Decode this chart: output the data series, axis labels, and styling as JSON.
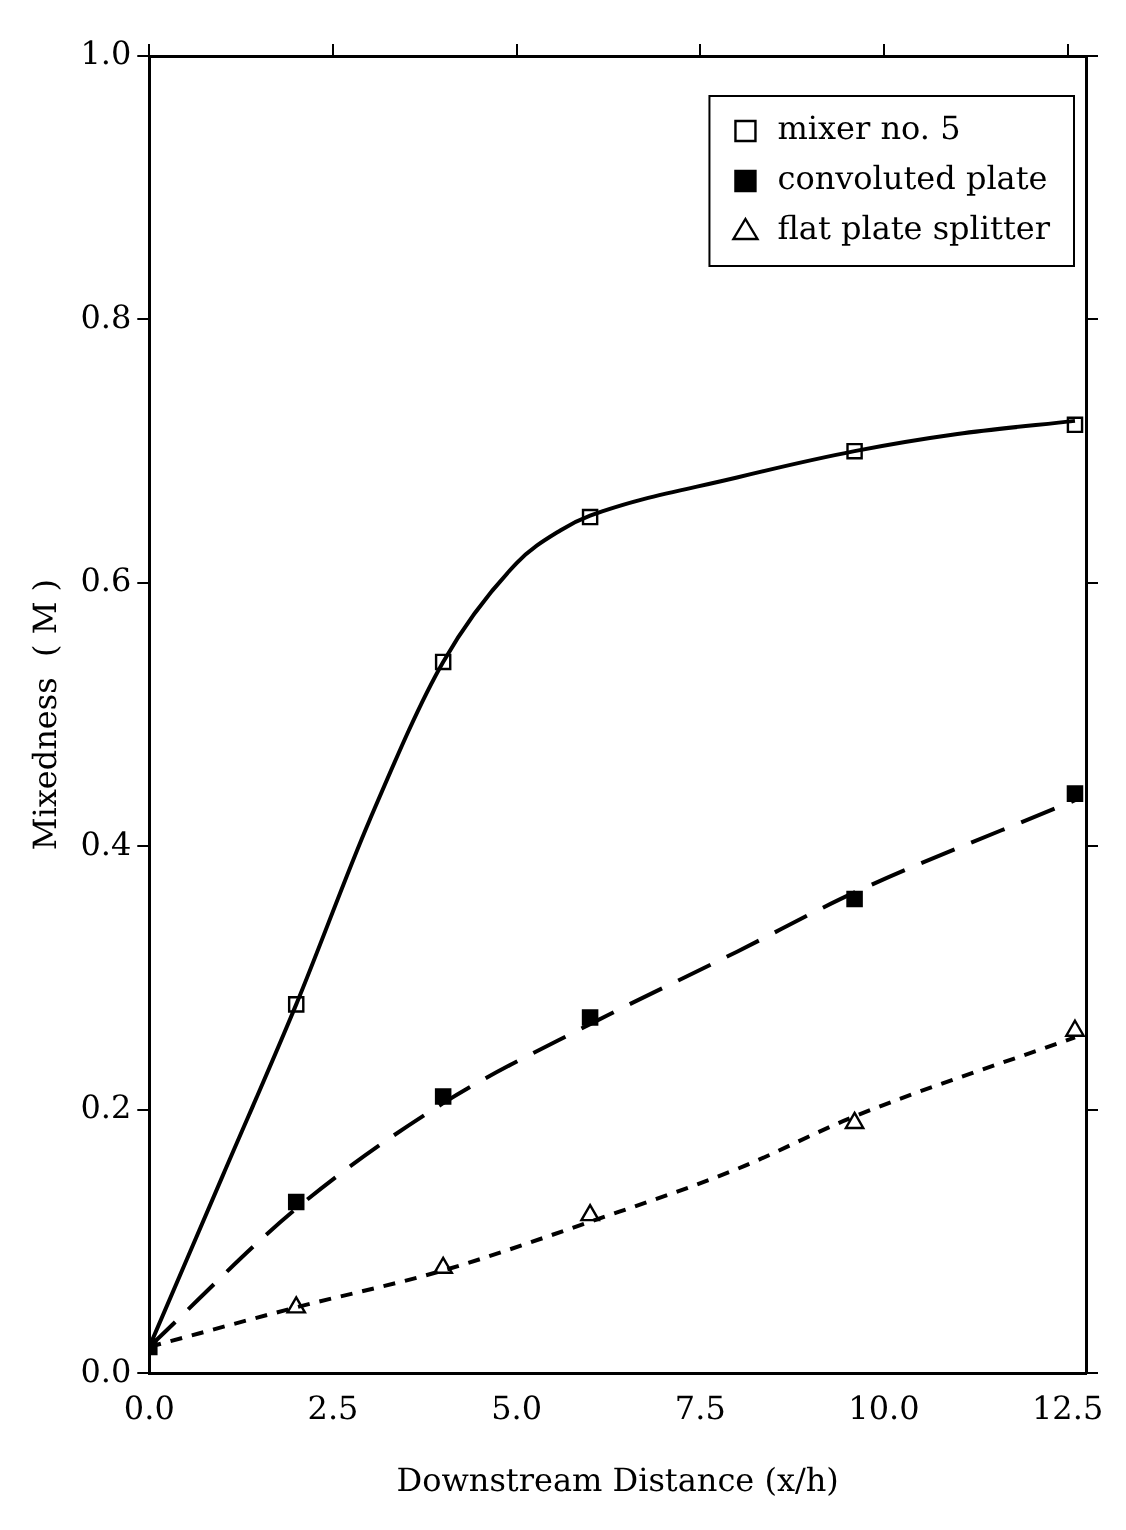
{
  "chart_data": {
    "type": "scatter",
    "xlabel": "Downstream Distance (x/h)",
    "ylabel": "Mixedness  ( M )",
    "xlim": [
      0,
      12.75
    ],
    "xticks": [
      {
        "value": 0,
        "label": "0.0"
      },
      {
        "value": 2.5,
        "label": "2.5"
      },
      {
        "value": 5,
        "label": "5.0"
      },
      {
        "value": 7.5,
        "label": "7.5"
      },
      {
        "value": 10,
        "label": "10.0"
      },
      {
        "value": 12.5,
        "label": "12.5"
      }
    ],
    "ylim": [
      0,
      1
    ],
    "yticks": [
      {
        "value": 0,
        "label": "0.0"
      },
      {
        "value": 0.2,
        "label": "0.2"
      },
      {
        "value": 0.4,
        "label": "0.4"
      },
      {
        "value": 0.6,
        "label": "0.6"
      },
      {
        "value": 0.8,
        "label": "0.8"
      },
      {
        "value": 1,
        "label": "1.0"
      }
    ],
    "grid": false,
    "legend": "top right",
    "tick_labels": [
      "x",
      "y"
    ],
    "series": [
      {
        "type": "line",
        "color": "#000000",
        "line_style": "solid",
        "marker": "none",
        "x": [
          0,
          1,
          2,
          3,
          4,
          5,
          5.6,
          6,
          8,
          9.6,
          11,
          12.6
        ],
        "values": [
          0.02,
          0.15,
          0.28,
          0.42,
          0.54,
          0.615,
          0.64,
          0.651,
          0.68,
          0.7,
          0.713,
          0.723
        ]
      },
      {
        "type": "line",
        "color": "#000000",
        "line_style": "dashed",
        "marker": "none",
        "x": [
          0,
          2,
          4,
          6,
          8,
          9.6,
          12.6
        ],
        "values": [
          0.02,
          0.125,
          0.205,
          0.265,
          0.32,
          0.365,
          0.435
        ]
      },
      {
        "type": "line",
        "color": "#000000",
        "line_style": "dotted",
        "marker": "none",
        "x": [
          0,
          2,
          4,
          6,
          8,
          9.6,
          12.6
        ],
        "values": [
          0.02,
          0.05,
          0.078,
          0.115,
          0.155,
          0.195,
          0.255
        ]
      },
      {
        "name": "mixer no. 5",
        "type": "scatter",
        "color": "#ffffff",
        "marker": "square",
        "x": [
          2,
          4,
          6,
          9.6,
          12.6
        ],
        "values": [
          0.28,
          0.54,
          0.65,
          0.7,
          0.72
        ]
      },
      {
        "name": "convoluted plate",
        "type": "scatter",
        "color": "#000000",
        "marker": "square",
        "x": [
          0,
          2,
          4,
          6,
          9.6,
          12.6
        ],
        "values": [
          0.02,
          0.13,
          0.21,
          0.27,
          0.36,
          0.44
        ]
      },
      {
        "name": "flat plate splitter",
        "type": "scatter",
        "color": "#ffffff",
        "marker": "triangle",
        "x": [
          2,
          4,
          6,
          9.6,
          12.6
        ],
        "values": [
          0.05,
          0.08,
          0.12,
          0.19,
          0.26
        ]
      }
    ]
  }
}
